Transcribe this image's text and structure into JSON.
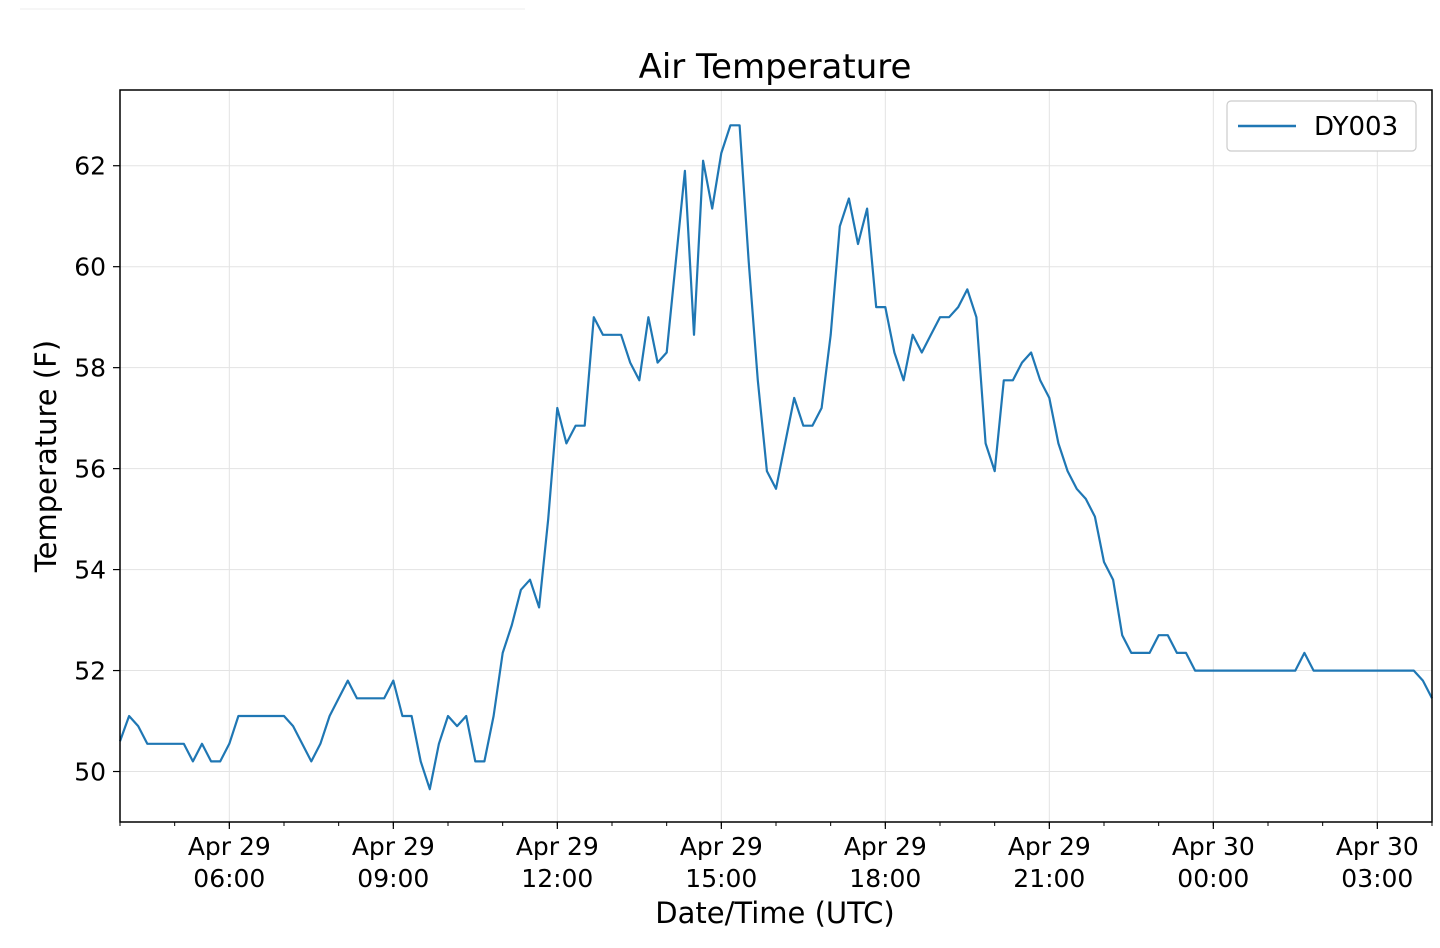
{
  "chart_data": {
    "type": "line",
    "title": "Air Temperature",
    "xlabel": "Date/Time (UTC)",
    "ylabel": "Temperature (F)",
    "x_range": [
      "2021-04-29T04:00",
      "2021-04-30T04:00"
    ],
    "ylim": [
      49.0,
      63.5
    ],
    "grid": true,
    "legend_position": "top-right",
    "y_ticks": [
      50,
      52,
      54,
      56,
      58,
      60,
      62
    ],
    "x_ticks": [
      {
        "t": "2021-04-29T06:00",
        "line1": "Apr 29",
        "line2": "06:00"
      },
      {
        "t": "2021-04-29T09:00",
        "line1": "Apr 29",
        "line2": "09:00"
      },
      {
        "t": "2021-04-29T12:00",
        "line1": "Apr 29",
        "line2": "12:00"
      },
      {
        "t": "2021-04-29T15:00",
        "line1": "Apr 29",
        "line2": "15:00"
      },
      {
        "t": "2021-04-29T18:00",
        "line1": "Apr 29",
        "line2": "18:00"
      },
      {
        "t": "2021-04-29T21:00",
        "line1": "Apr 29",
        "line2": "21:00"
      },
      {
        "t": "2021-04-30T00:00",
        "line1": "Apr 30",
        "line2": "00:00"
      },
      {
        "t": "2021-04-30T03:00",
        "line1": "Apr 30",
        "line2": "03:00"
      }
    ],
    "series": [
      {
        "name": "DY003",
        "color": "#1f77b4",
        "points": [
          [
            "2021-04-29T04:00",
            50.6
          ],
          [
            "2021-04-29T04:10",
            51.1
          ],
          [
            "2021-04-29T04:20",
            50.9
          ],
          [
            "2021-04-29T04:30",
            50.55
          ],
          [
            "2021-04-29T04:40",
            50.55
          ],
          [
            "2021-04-29T04:50",
            50.55
          ],
          [
            "2021-04-29T05:00",
            50.55
          ],
          [
            "2021-04-29T05:10",
            50.55
          ],
          [
            "2021-04-29T05:20",
            50.2
          ],
          [
            "2021-04-29T05:30",
            50.55
          ],
          [
            "2021-04-29T05:40",
            50.2
          ],
          [
            "2021-04-29T05:50",
            50.2
          ],
          [
            "2021-04-29T06:00",
            50.55
          ],
          [
            "2021-04-29T06:10",
            51.1
          ],
          [
            "2021-04-29T06:20",
            51.1
          ],
          [
            "2021-04-29T06:30",
            51.1
          ],
          [
            "2021-04-29T06:40",
            51.1
          ],
          [
            "2021-04-29T06:50",
            51.1
          ],
          [
            "2021-04-29T07:00",
            51.1
          ],
          [
            "2021-04-29T07:10",
            50.9
          ],
          [
            "2021-04-29T07:20",
            50.55
          ],
          [
            "2021-04-29T07:30",
            50.2
          ],
          [
            "2021-04-29T07:40",
            50.55
          ],
          [
            "2021-04-29T07:50",
            51.1
          ],
          [
            "2021-04-29T08:00",
            51.45
          ],
          [
            "2021-04-29T08:10",
            51.8
          ],
          [
            "2021-04-29T08:20",
            51.45
          ],
          [
            "2021-04-29T08:30",
            51.45
          ],
          [
            "2021-04-29T08:40",
            51.45
          ],
          [
            "2021-04-29T08:50",
            51.45
          ],
          [
            "2021-04-29T09:00",
            51.8
          ],
          [
            "2021-04-29T09:10",
            51.1
          ],
          [
            "2021-04-29T09:20",
            51.1
          ],
          [
            "2021-04-29T09:30",
            50.2
          ],
          [
            "2021-04-29T09:40",
            49.65
          ],
          [
            "2021-04-29T09:50",
            50.55
          ],
          [
            "2021-04-29T10:00",
            51.1
          ],
          [
            "2021-04-29T10:10",
            50.9
          ],
          [
            "2021-04-29T10:20",
            51.1
          ],
          [
            "2021-04-29T10:30",
            50.2
          ],
          [
            "2021-04-29T10:40",
            50.2
          ],
          [
            "2021-04-29T10:50",
            51.1
          ],
          [
            "2021-04-29T11:00",
            52.35
          ],
          [
            "2021-04-29T11:10",
            52.9
          ],
          [
            "2021-04-29T11:20",
            53.6
          ],
          [
            "2021-04-29T11:30",
            53.8
          ],
          [
            "2021-04-29T11:40",
            53.25
          ],
          [
            "2021-04-29T11:50",
            55.0
          ],
          [
            "2021-04-29T12:00",
            57.2
          ],
          [
            "2021-04-29T12:10",
            56.5
          ],
          [
            "2021-04-29T12:20",
            56.85
          ],
          [
            "2021-04-29T12:30",
            56.85
          ],
          [
            "2021-04-29T12:40",
            59.0
          ],
          [
            "2021-04-29T12:50",
            58.65
          ],
          [
            "2021-04-29T13:00",
            58.65
          ],
          [
            "2021-04-29T13:10",
            58.65
          ],
          [
            "2021-04-29T13:20",
            58.1
          ],
          [
            "2021-04-29T13:30",
            57.75
          ],
          [
            "2021-04-29T13:40",
            59.0
          ],
          [
            "2021-04-29T13:50",
            58.1
          ],
          [
            "2021-04-29T14:00",
            58.3
          ],
          [
            "2021-04-29T14:10",
            60.1
          ],
          [
            "2021-04-29T14:20",
            61.9
          ],
          [
            "2021-04-29T14:30",
            58.65
          ],
          [
            "2021-04-29T14:40",
            62.1
          ],
          [
            "2021-04-29T14:50",
            61.15
          ],
          [
            "2021-04-29T15:00",
            62.25
          ],
          [
            "2021-04-29T15:10",
            62.8
          ],
          [
            "2021-04-29T15:20",
            62.8
          ],
          [
            "2021-04-29T15:30",
            60.1
          ],
          [
            "2021-04-29T15:40",
            57.75
          ],
          [
            "2021-04-29T15:50",
            55.95
          ],
          [
            "2021-04-29T16:00",
            55.6
          ],
          [
            "2021-04-29T16:10",
            56.5
          ],
          [
            "2021-04-29T16:20",
            57.4
          ],
          [
            "2021-04-29T16:30",
            56.85
          ],
          [
            "2021-04-29T16:40",
            56.85
          ],
          [
            "2021-04-29T16:50",
            57.2
          ],
          [
            "2021-04-29T17:00",
            58.65
          ],
          [
            "2021-04-29T17:10",
            60.8
          ],
          [
            "2021-04-29T17:20",
            61.35
          ],
          [
            "2021-04-29T17:30",
            60.45
          ],
          [
            "2021-04-29T17:40",
            61.15
          ],
          [
            "2021-04-29T17:50",
            59.2
          ],
          [
            "2021-04-29T18:00",
            59.2
          ],
          [
            "2021-04-29T18:10",
            58.3
          ],
          [
            "2021-04-29T18:20",
            57.75
          ],
          [
            "2021-04-29T18:30",
            58.65
          ],
          [
            "2021-04-29T18:40",
            58.3
          ],
          [
            "2021-04-29T18:50",
            58.65
          ],
          [
            "2021-04-29T19:00",
            59.0
          ],
          [
            "2021-04-29T19:10",
            59.0
          ],
          [
            "2021-04-29T19:20",
            59.2
          ],
          [
            "2021-04-29T19:30",
            59.55
          ],
          [
            "2021-04-29T19:40",
            59.0
          ],
          [
            "2021-04-29T19:50",
            56.5
          ],
          [
            "2021-04-29T20:00",
            55.95
          ],
          [
            "2021-04-29T20:10",
            57.75
          ],
          [
            "2021-04-29T20:20",
            57.75
          ],
          [
            "2021-04-29T20:30",
            58.1
          ],
          [
            "2021-04-29T20:40",
            58.3
          ],
          [
            "2021-04-29T20:50",
            57.75
          ],
          [
            "2021-04-29T21:00",
            57.4
          ],
          [
            "2021-04-29T21:10",
            56.5
          ],
          [
            "2021-04-29T21:20",
            55.95
          ],
          [
            "2021-04-29T21:30",
            55.6
          ],
          [
            "2021-04-29T21:40",
            55.4
          ],
          [
            "2021-04-29T21:50",
            55.05
          ],
          [
            "2021-04-29T22:00",
            54.15
          ],
          [
            "2021-04-29T22:10",
            53.8
          ],
          [
            "2021-04-29T22:20",
            52.7
          ],
          [
            "2021-04-29T22:30",
            52.35
          ],
          [
            "2021-04-29T22:40",
            52.35
          ],
          [
            "2021-04-29T22:50",
            52.35
          ],
          [
            "2021-04-29T23:00",
            52.7
          ],
          [
            "2021-04-29T23:10",
            52.7
          ],
          [
            "2021-04-29T23:20",
            52.35
          ],
          [
            "2021-04-29T23:30",
            52.35
          ],
          [
            "2021-04-29T23:40",
            52.0
          ],
          [
            "2021-04-29T23:50",
            52.0
          ],
          [
            "2021-04-30T00:00",
            52.0
          ],
          [
            "2021-04-30T00:10",
            52.0
          ],
          [
            "2021-04-30T00:20",
            52.0
          ],
          [
            "2021-04-30T00:30",
            52.0
          ],
          [
            "2021-04-30T00:40",
            52.0
          ],
          [
            "2021-04-30T00:50",
            52.0
          ],
          [
            "2021-04-30T01:00",
            52.0
          ],
          [
            "2021-04-30T01:10",
            52.0
          ],
          [
            "2021-04-30T01:20",
            52.0
          ],
          [
            "2021-04-30T01:30",
            52.0
          ],
          [
            "2021-04-30T01:40",
            52.35
          ],
          [
            "2021-04-30T01:50",
            52.0
          ],
          [
            "2021-04-30T02:00",
            52.0
          ],
          [
            "2021-04-30T02:10",
            52.0
          ],
          [
            "2021-04-30T02:20",
            52.0
          ],
          [
            "2021-04-30T02:30",
            52.0
          ],
          [
            "2021-04-30T02:40",
            52.0
          ],
          [
            "2021-04-30T02:50",
            52.0
          ],
          [
            "2021-04-30T03:00",
            52.0
          ],
          [
            "2021-04-30T03:10",
            52.0
          ],
          [
            "2021-04-30T03:20",
            52.0
          ],
          [
            "2021-04-30T03:30",
            52.0
          ],
          [
            "2021-04-30T03:40",
            52.0
          ],
          [
            "2021-04-30T03:50",
            51.8
          ],
          [
            "2021-04-30T04:00",
            51.45
          ]
        ]
      }
    ]
  }
}
